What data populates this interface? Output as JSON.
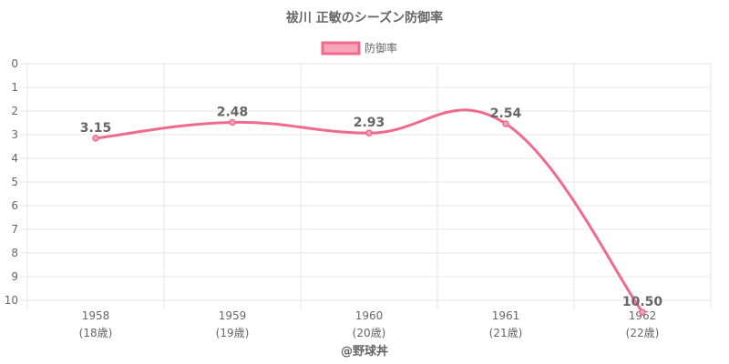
{
  "chart_data": {
    "type": "line",
    "title": "祓川 正敏のシーズン防御率",
    "legend": {
      "label": "防御率",
      "position": "top"
    },
    "categories": [
      "1958",
      "1959",
      "1960",
      "1961",
      "1962"
    ],
    "category_sublabels": [
      "(18歳)",
      "(19歳)",
      "(20歳)",
      "(21歳)",
      "(22歳)"
    ],
    "series": [
      {
        "name": "防御率",
        "values": [
          3.15,
          2.48,
          2.93,
          2.54,
          10.5
        ],
        "value_labels": [
          "3.15",
          "2.48",
          "2.93",
          "2.54",
          "10.50"
        ]
      }
    ],
    "y_ticks": [
      "0",
      "1",
      "2",
      "3",
      "4",
      "5",
      "6",
      "7",
      "8",
      "9",
      "10"
    ],
    "ylim": [
      0,
      10
    ],
    "y_reversed": true,
    "grid": true,
    "colors": {
      "line": "#f06a8c",
      "legend_fill": "#f6a5ba",
      "grid": "#e5e5e5",
      "text": "#666666"
    },
    "credit": "@野球丼"
  }
}
